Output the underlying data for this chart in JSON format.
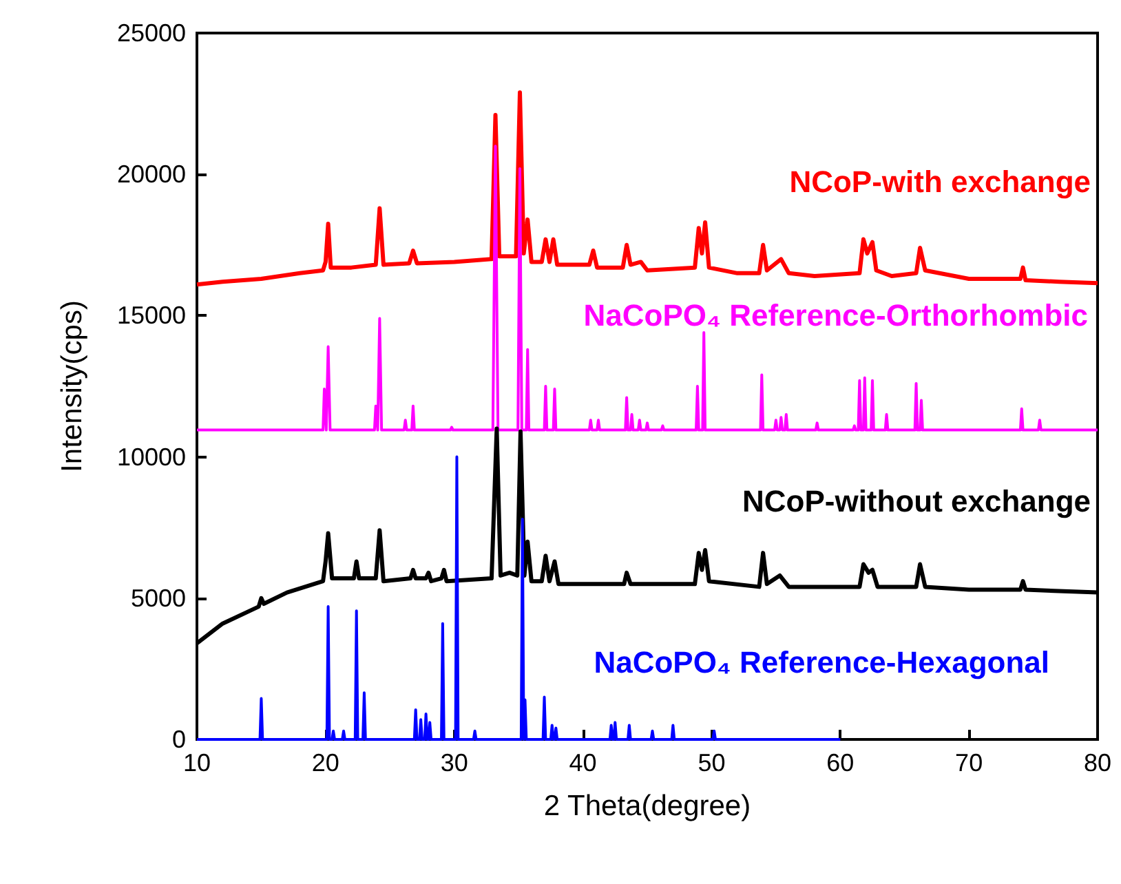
{
  "chart_data": {
    "type": "line",
    "xlabel": "2 Theta(degree)",
    "ylabel": "Intensity(cps)",
    "xlim": [
      10,
      80
    ],
    "xticks": [
      10,
      20,
      30,
      40,
      50,
      60,
      70,
      80
    ],
    "ylim": [
      0,
      25000
    ],
    "yticks": [
      0,
      5000,
      10000,
      15000,
      20000,
      25000
    ],
    "grid": false,
    "legend": false,
    "marker": "none",
    "line_style": "solid",
    "series": [
      {
        "name": "NCoP-with exchange",
        "color": "#ff0000",
        "x": [
          10,
          12,
          15,
          18,
          19.8,
          20.0,
          20.2,
          20.4,
          22,
          23.9,
          24.2,
          24.5,
          26.5,
          26.8,
          27.1,
          30,
          32.9,
          33.2,
          33.5,
          34.8,
          35.1,
          35.4,
          35.7,
          36.0,
          36.8,
          37.1,
          37.4,
          37.7,
          38.0,
          40.5,
          40.8,
          41.1,
          43.1,
          43.4,
          43.7,
          44.5,
          45,
          48.7,
          49.0,
          49.25,
          49.5,
          49.8,
          52,
          53.7,
          54.0,
          54.3,
          55.4,
          56,
          58,
          61.5,
          61.8,
          62.1,
          62.5,
          62.8,
          64,
          65.9,
          66.2,
          66.6,
          70,
          74.0,
          74.2,
          74.4,
          77,
          80
        ],
        "values": [
          16100,
          16200,
          16300,
          16500,
          16600,
          16900,
          18250,
          16700,
          16700,
          16800,
          18800,
          16800,
          16850,
          17300,
          16850,
          16900,
          17000,
          22100,
          17100,
          17100,
          22900,
          17200,
          18400,
          16900,
          16900,
          17700,
          16900,
          17700,
          16800,
          16800,
          17300,
          16700,
          16700,
          17500,
          16800,
          16900,
          16600,
          16700,
          18100,
          17200,
          18300,
          16700,
          16500,
          16500,
          17500,
          16600,
          17000,
          16500,
          16400,
          16500,
          17700,
          17200,
          17600,
          16600,
          16400,
          16500,
          17400,
          16600,
          16300,
          16300,
          16700,
          16250,
          16200,
          16150
        ]
      },
      {
        "name": "NaCoPO₄ Reference-Orthorhombic",
        "color": "#ff00ff",
        "x": [
          10,
          19.8,
          19.9,
          20.05,
          20.2,
          20.35,
          23.8,
          23.9,
          24.05,
          24.2,
          24.35,
          26.1,
          26.2,
          26.3,
          26.7,
          26.8,
          26.9,
          29.7,
          29.8,
          29.9,
          33.0,
          33.2,
          33.4,
          34.95,
          35.1,
          35.25,
          35.6,
          35.7,
          35.8,
          37.0,
          37.1,
          37.2,
          37.7,
          37.8,
          37.9,
          40.5,
          40.6,
          40.7,
          41.1,
          41.2,
          41.3,
          43.3,
          43.4,
          43.5,
          43.7,
          43.8,
          43.9,
          44.3,
          44.4,
          44.5,
          44.9,
          45.0,
          45.1,
          46.1,
          46.2,
          46.3,
          48.8,
          48.9,
          49.0,
          49.3,
          49.4,
          49.5,
          53.8,
          53.9,
          54.0,
          54.9,
          55.0,
          55.1,
          55.3,
          55.4,
          55.5,
          55.7,
          55.8,
          55.9,
          58.1,
          58.2,
          58.3,
          61.0,
          61.1,
          61.2,
          61.4,
          61.5,
          61.6,
          61.8,
          61.9,
          62.0,
          62.4,
          62.5,
          62.6,
          63.5,
          63.6,
          63.7,
          65.8,
          65.9,
          66.0,
          66.2,
          66.3,
          66.4,
          74.0,
          74.1,
          74.2,
          75.4,
          75.5,
          75.6,
          80
        ],
        "values": [
          10950,
          10950,
          12400,
          10950,
          13900,
          10950,
          10950,
          11800,
          10950,
          14900,
          10950,
          10950,
          11300,
          10950,
          10950,
          11800,
          10950,
          10950,
          11050,
          10950,
          10950,
          21000,
          10950,
          10950,
          20200,
          10950,
          10950,
          13800,
          10950,
          10950,
          12500,
          10950,
          10950,
          12400,
          10950,
          10950,
          11300,
          10950,
          10950,
          11300,
          10950,
          10950,
          12100,
          10950,
          10950,
          11500,
          10950,
          10950,
          11300,
          10950,
          10950,
          11200,
          10950,
          10950,
          11100,
          10950,
          10950,
          12500,
          10950,
          10950,
          14400,
          10950,
          10950,
          12900,
          10950,
          10950,
          11300,
          10950,
          10950,
          11400,
          10950,
          10950,
          11500,
          10950,
          10950,
          11200,
          10950,
          10950,
          11100,
          10950,
          10950,
          12700,
          10950,
          10950,
          12800,
          10950,
          10950,
          12700,
          10950,
          10950,
          11500,
          10950,
          10950,
          12600,
          10950,
          10950,
          12000,
          10950,
          10950,
          11700,
          10950,
          10950,
          11300,
          10950,
          10950
        ]
      },
      {
        "name": "NCoP-without exchange",
        "color": "#000000",
        "x": [
          10,
          12,
          14.8,
          15,
          15.2,
          17,
          19.8,
          20.0,
          20.2,
          20.5,
          22.2,
          22.4,
          22.6,
          23.9,
          24.2,
          24.5,
          26.6,
          26.8,
          27.0,
          27.8,
          28.0,
          28.2,
          29.0,
          29.2,
          29.4,
          32.9,
          33.3,
          33.6,
          34.3,
          34.9,
          35.15,
          35.45,
          35.7,
          36.0,
          36.8,
          37.1,
          37.4,
          37.8,
          38.1,
          41,
          43.2,
          43.4,
          43.7,
          48.7,
          49.0,
          49.25,
          49.5,
          49.8,
          53.7,
          54.0,
          54.3,
          55.3,
          56,
          61.5,
          61.8,
          62.2,
          62.5,
          62.9,
          65.9,
          66.2,
          66.6,
          70,
          74.0,
          74.2,
          74.4,
          77,
          80
        ],
        "values": [
          3400,
          4100,
          4700,
          5000,
          4800,
          5200,
          5600,
          6300,
          7300,
          5700,
          5700,
          6300,
          5700,
          5700,
          7400,
          5600,
          5700,
          6000,
          5700,
          5700,
          5900,
          5600,
          5700,
          6000,
          5600,
          5700,
          11000,
          5800,
          5900,
          5800,
          10900,
          5800,
          7000,
          5600,
          5600,
          6500,
          5600,
          6300,
          5500,
          5500,
          5500,
          5900,
          5500,
          5500,
          6600,
          6000,
          6700,
          5600,
          5400,
          6600,
          5500,
          5800,
          5400,
          5400,
          6200,
          5900,
          6000,
          5400,
          5400,
          6200,
          5400,
          5300,
          5300,
          5600,
          5300,
          5250,
          5200
        ]
      },
      {
        "name": "NaCoPO₄ Reference-Hexagonal",
        "color": "#0000ff",
        "x": [
          10,
          14.9,
          15,
          15.1,
          20.1,
          20.2,
          20.3,
          20.5,
          20.6,
          20.7,
          21.3,
          21.4,
          21.5,
          22.3,
          22.4,
          22.5,
          22.9,
          23,
          23.1,
          26.9,
          27,
          27.1,
          27.3,
          27.4,
          27.5,
          27.7,
          27.8,
          27.9,
          28.0,
          28.1,
          28.2,
          29.0,
          29.1,
          29.2,
          30.1,
          30.2,
          30.3,
          31.5,
          31.6,
          31.7,
          35.2,
          35.3,
          35.4,
          35.5,
          35.6,
          36.9,
          37.0,
          37.1,
          37.5,
          37.6,
          37.7,
          37.8,
          37.9,
          38.0,
          42.1,
          42.2,
          42.3,
          42.4,
          42.5,
          42.6,
          43.5,
          43.6,
          43.7,
          45.3,
          45.4,
          45.5,
          46.9,
          47.0,
          47.1,
          50.1,
          50.2,
          50.3,
          60
        ],
        "values": [
          0,
          0,
          1450,
          0,
          0,
          4700,
          0,
          0,
          300,
          0,
          0,
          300,
          0,
          0,
          4550,
          0,
          0,
          1650,
          0,
          0,
          1050,
          0,
          0,
          700,
          0,
          0,
          900,
          0,
          0,
          600,
          0,
          0,
          4100,
          0,
          0,
          10000,
          0,
          0,
          300,
          0,
          0,
          7800,
          0,
          1400,
          0,
          0,
          1500,
          0,
          0,
          500,
          0,
          0,
          400,
          0,
          0,
          500,
          0,
          0,
          600,
          0,
          0,
          500,
          0,
          0,
          300,
          0,
          0,
          500,
          0,
          0,
          300,
          0,
          0
        ]
      }
    ]
  }
}
